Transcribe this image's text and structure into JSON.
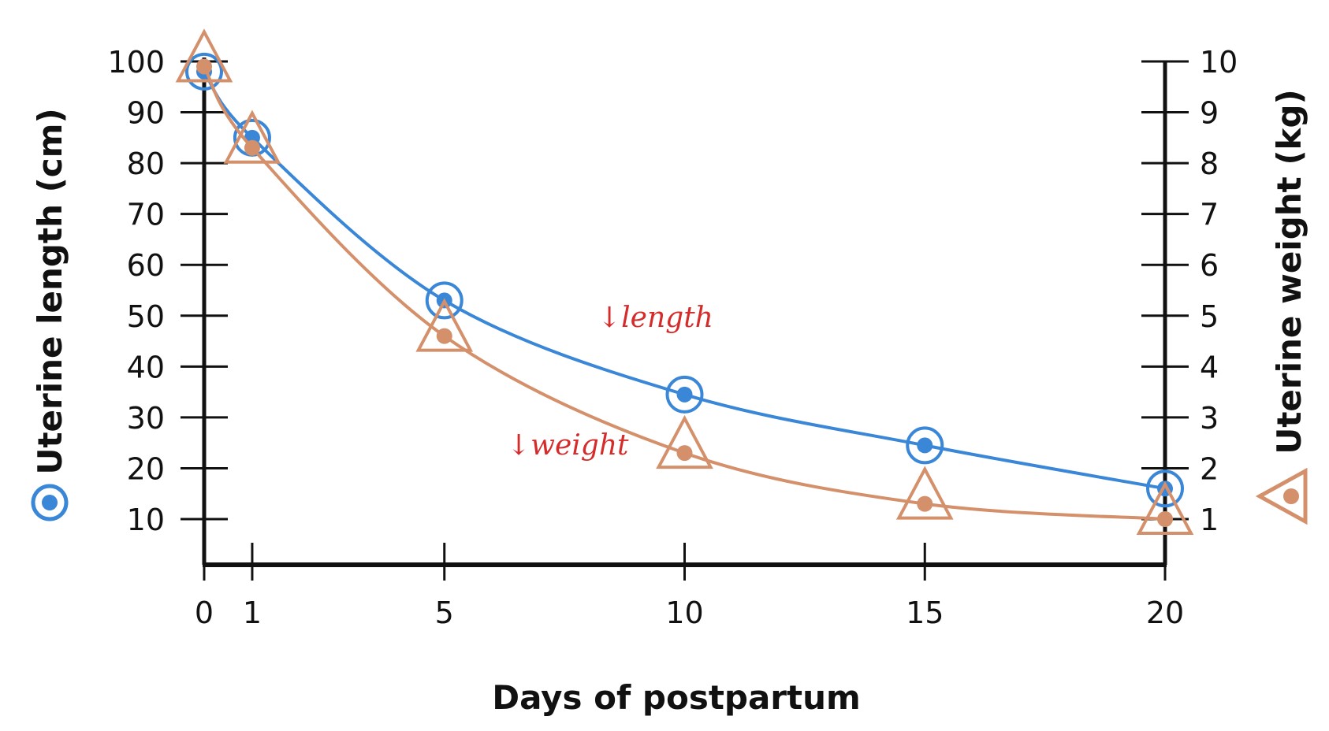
{
  "chart_data": {
    "type": "line",
    "xlabel": "Days of postpartum",
    "ylabel_left": "Uterine length (cm)",
    "ylabel_right": "Uterine weight (kg)",
    "x_ticks": [
      0,
      1,
      5,
      10,
      15,
      20
    ],
    "y_left_ticks": [
      10,
      20,
      30,
      40,
      50,
      60,
      70,
      80,
      90,
      100
    ],
    "y_right_ticks": [
      1,
      2,
      3,
      4,
      5,
      6,
      7,
      8,
      9,
      10
    ],
    "xlim": [
      0,
      20
    ],
    "ylim_left": [
      10,
      100
    ],
    "ylim_right": [
      1,
      10
    ],
    "grid": false,
    "series": [
      {
        "axis": "left",
        "marker": "circle-ring-dot",
        "color": "#3a87d8",
        "x": [
          0,
          1,
          5,
          10,
          15,
          20
        ],
        "values": [
          98,
          85,
          53,
          34.5,
          24.5,
          16
        ]
      },
      {
        "axis": "right",
        "marker": "triangle-dot",
        "color": "#d4906a",
        "x": [
          0,
          1,
          5,
          10,
          15,
          20
        ],
        "values": [
          9.9,
          8.3,
          4.6,
          2.3,
          1.3,
          1.0
        ]
      }
    ],
    "annotations": [
      "↓length",
      "↓weight"
    ],
    "annotation_color": "#d62b2b"
  }
}
